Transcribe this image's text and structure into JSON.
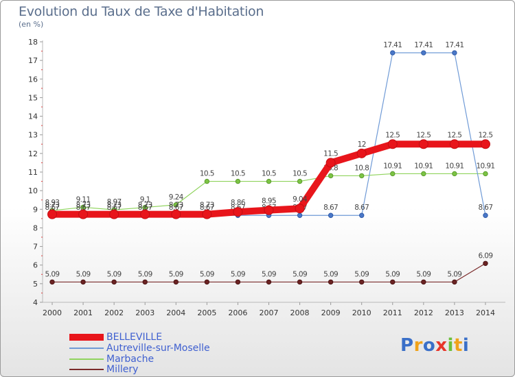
{
  "header": {
    "title": "Evolution du Taux de Taxe d'Habitation",
    "subtitle": "(en %)"
  },
  "chart_data": {
    "type": "line",
    "title": "Evolution du Taux de Taxe d'Habitation",
    "subtitle": "(en %)",
    "xlabel": "",
    "ylabel": "(en %)",
    "x": [
      "2000",
      "2001",
      "2002",
      "2003",
      "2004",
      "2005",
      "2006",
      "2007",
      "2008",
      "2009",
      "2010",
      "2011",
      "2012",
      "2013",
      "2014"
    ],
    "ylim": [
      4,
      18
    ],
    "yticks": [
      4,
      5,
      6,
      7,
      8,
      9,
      10,
      11,
      12,
      13,
      14,
      15,
      16,
      17,
      18
    ],
    "grid": false,
    "legend_position": "bottom-left",
    "series": [
      {
        "name": "BELLEVILLE",
        "color": "#e8151b",
        "values": [
          8.73,
          8.73,
          8.73,
          8.73,
          8.73,
          8.73,
          8.86,
          8.95,
          9.04,
          11.5,
          12,
          12.5,
          12.5,
          12.5,
          12.5
        ],
        "labels": [
          "8.73",
          "8.73",
          "8.73",
          "8.73",
          "8.73",
          "8.73",
          "8.86",
          "8.95",
          "9.04",
          "11.5",
          "12",
          "12.5",
          "12.5",
          "12.5",
          "12.5"
        ]
      },
      {
        "name": "Autreville-sur-Moselle",
        "color": "#6f9ad6",
        "values": [
          8.67,
          8.67,
          8.67,
          8.67,
          8.67,
          8.67,
          8.67,
          8.67,
          8.67,
          8.67,
          8.67,
          17.41,
          17.41,
          17.41,
          8.67
        ],
        "labels": [
          "8.67",
          "8.67",
          "8.67",
          "8.67",
          "8.67",
          "8.67",
          "8.67",
          "8.67",
          "8.67",
          "8.67",
          "8.67",
          "17.41",
          "17.41",
          "17.41",
          "8.67"
        ]
      },
      {
        "name": "Marbache",
        "color": "#8fd35c",
        "values": [
          8.93,
          9.11,
          8.97,
          9.1,
          9.24,
          10.5,
          10.5,
          10.5,
          10.5,
          10.8,
          10.8,
          10.91,
          10.91,
          10.91,
          10.91
        ],
        "labels": [
          "8.93",
          "9.11",
          "8.97",
          "9.1",
          "9.24",
          "10.5",
          "10.5",
          "10.5",
          "10.5",
          "10.8",
          "10.8",
          "10.91",
          "10.91",
          "10.91",
          "10.91"
        ]
      },
      {
        "name": "Millery",
        "color": "#7a2a2a",
        "values": [
          5.09,
          5.09,
          5.09,
          5.09,
          5.09,
          5.09,
          5.09,
          5.09,
          5.09,
          5.09,
          5.09,
          5.09,
          5.09,
          5.09,
          6.09
        ],
        "labels": [
          "5.09",
          "5.09",
          "5.09",
          "5.09",
          "5.09",
          "5.09",
          "5.09",
          "5.09",
          "5.09",
          "5.09",
          "5.09",
          "5.09",
          "5.09",
          "5.09",
          "6.09"
        ]
      }
    ]
  },
  "logo": {
    "letters": [
      {
        "ch": "P",
        "color": "#3a6fc8"
      },
      {
        "ch": "r",
        "color": "#f0a21a"
      },
      {
        "ch": "o",
        "color": "#3a6fc8"
      },
      {
        "ch": "x",
        "color": "#e8352a"
      },
      {
        "ch": "i",
        "color": "#6cbf3a"
      },
      {
        "ch": "t",
        "color": "#f0a21a"
      },
      {
        "ch": "i",
        "color": "#3a6fc8"
      }
    ]
  }
}
